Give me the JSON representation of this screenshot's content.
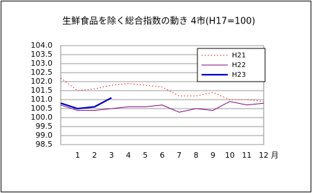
{
  "chart_data": {
    "type": "line",
    "title": "生鮮食品を除く総合指数の動き 4市(H17=100)",
    "x_label": "月",
    "x": [
      0,
      1,
      2,
      3,
      4,
      5,
      6,
      7,
      8,
      9,
      10,
      11,
      12
    ],
    "xlim": [
      0,
      12
    ],
    "xticks": [
      1,
      2,
      3,
      4,
      5,
      6,
      7,
      8,
      9,
      10,
      11,
      12
    ],
    "ylim": [
      98.5,
      104
    ],
    "yticks": [
      98.5,
      {
        "value": 99,
        "label": "99.0"
      },
      99.5,
      {
        "value": 100,
        "label": "100.0"
      },
      100.5,
      {
        "value": 101,
        "label": "101.0"
      },
      101.5,
      {
        "value": 102,
        "label": "102.0"
      },
      102.5,
      {
        "value": 103,
        "label": "103.0"
      },
      103.5,
      {
        "value": 104,
        "label": "104.0"
      }
    ],
    "grid": true,
    "legend": "upper right",
    "series": [
      {
        "name": "H21",
        "color": "#ff0000",
        "style": "dotted",
        "values": [
          102.2,
          101.5,
          101.6,
          101.8,
          101.9,
          101.8,
          101.7,
          101.2,
          101.2,
          101.4,
          101.0,
          101.0,
          100.9
        ]
      },
      {
        "name": "H22",
        "color": "#800080",
        "style": "solid",
        "values": [
          100.7,
          100.4,
          100.4,
          100.5,
          100.6,
          100.6,
          100.7,
          100.3,
          100.5,
          100.4,
          100.9,
          100.7,
          100.8
        ]
      },
      {
        "name": "H23",
        "color": "#0000cc",
        "style": "thick",
        "values": [
          100.8,
          100.5,
          100.6,
          101.1,
          null,
          null,
          null,
          null,
          null,
          null,
          null,
          null,
          null
        ]
      }
    ]
  }
}
